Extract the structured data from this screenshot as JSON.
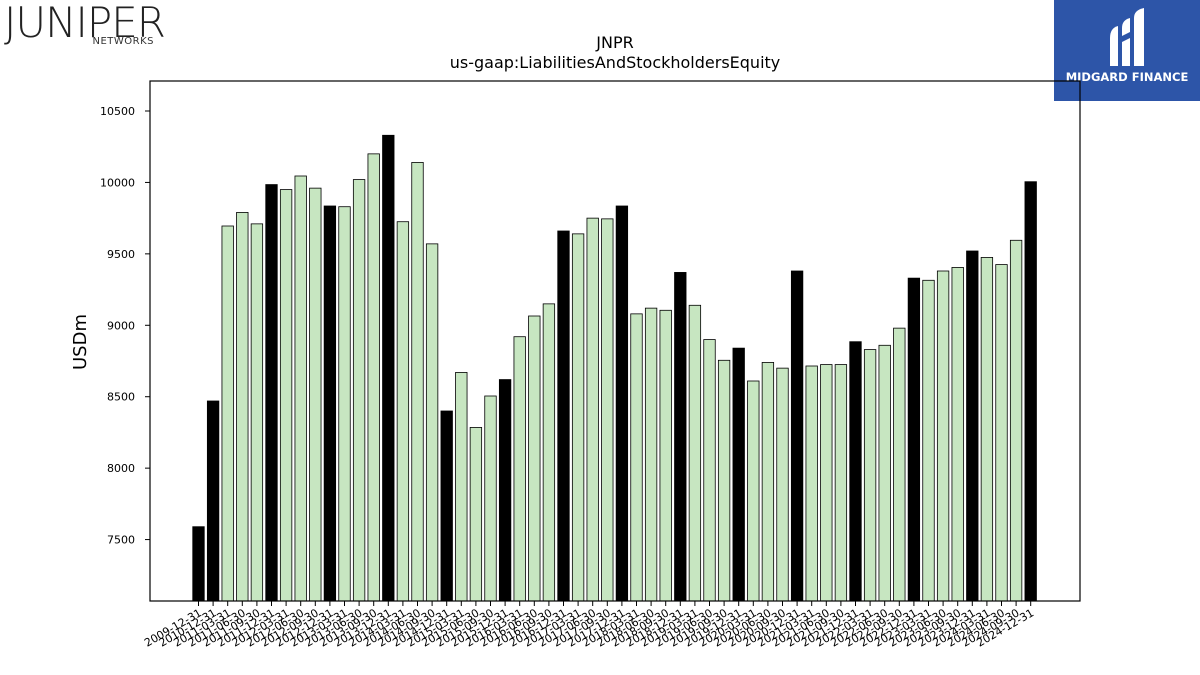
{
  "logos": {
    "left_word": "JUNIPER",
    "left_sub": "NETWORKS",
    "right_text": "MIDGARD FINANCE"
  },
  "chart_data": {
    "type": "bar",
    "title": "JNPR",
    "subtitle": "us-gaap:LiabilitiesAndStockholdersEquity",
    "xlabel": "",
    "ylabel": "USDm",
    "ylim": [
      7070,
      10710
    ],
    "yticks": [
      7500,
      8000,
      8500,
      9000,
      9500,
      10000,
      10500
    ],
    "grid": false,
    "colors": {
      "annual": "#000000",
      "quarterly": "#c7e6c1",
      "edge": "#000000"
    },
    "categories": [
      "2009-12-31",
      "2010-12-31",
      "2011-03-31",
      "2011-06-30",
      "2011-09-30",
      "2011-12-31",
      "2012-03-31",
      "2012-06-30",
      "2012-09-30",
      "2012-12-31",
      "2013-03-31",
      "2013-06-30",
      "2013-09-30",
      "2013-12-31",
      "2014-03-31",
      "2014-06-30",
      "2014-09-30",
      "2014-12-31",
      "2015-03-31",
      "2015-06-30",
      "2015-09-30",
      "2015-12-31",
      "2016-03-31",
      "2016-06-30",
      "2016-09-30",
      "2016-12-31",
      "2017-03-31",
      "2017-06-30",
      "2017-09-30",
      "2017-12-31",
      "2018-03-31",
      "2018-06-30",
      "2018-09-30",
      "2018-12-31",
      "2019-03-31",
      "2019-06-30",
      "2019-09-30",
      "2019-12-31",
      "2020-03-31",
      "2020-06-30",
      "2020-09-30",
      "2020-12-31",
      "2021-03-31",
      "2021-06-30",
      "2021-09-30",
      "2021-12-31",
      "2022-03-31",
      "2022-06-30",
      "2022-09-30",
      "2022-12-31",
      "2023-03-31",
      "2023-06-30",
      "2023-09-30",
      "2023-12-31",
      "2024-03-31",
      "2024-06-30",
      "2024-09-30",
      "2024-12-31"
    ],
    "series": [
      {
        "values": [
          7590,
          8470,
          9695,
          9790,
          9710,
          9985,
          9950,
          10045,
          9960,
          9835,
          9830,
          10020,
          10200,
          10330,
          9725,
          10140,
          9570,
          8400,
          8670,
          8285,
          8505,
          8620,
          8920,
          9065,
          9150,
          9660,
          9640,
          9750,
          9745,
          9835,
          9080,
          9120,
          9105,
          9370,
          9140,
          8900,
          8755,
          8840,
          8610,
          8740,
          8700,
          9380,
          8715,
          8725,
          8725,
          8885,
          8830,
          8860,
          8980,
          9330,
          9315,
          9380,
          9405,
          9520,
          9475,
          9425,
          9595,
          10005
        ],
        "annual": [
          true,
          true,
          false,
          false,
          false,
          true,
          false,
          false,
          false,
          true,
          false,
          false,
          false,
          true,
          false,
          false,
          false,
          true,
          false,
          false,
          false,
          true,
          false,
          false,
          false,
          true,
          false,
          false,
          false,
          true,
          false,
          false,
          false,
          true,
          false,
          false,
          false,
          true,
          false,
          false,
          false,
          true,
          false,
          false,
          false,
          true,
          false,
          false,
          false,
          true,
          false,
          false,
          false,
          true,
          false,
          false,
          false,
          true
        ]
      }
    ]
  }
}
